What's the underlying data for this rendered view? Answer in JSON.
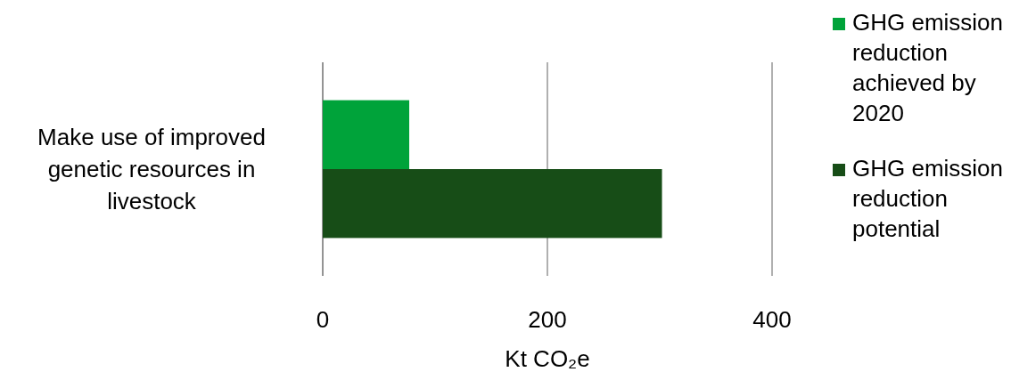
{
  "chart_data": {
    "type": "bar",
    "orientation": "horizontal",
    "categories": [
      "Make use of improved genetic resources in livestock"
    ],
    "series": [
      {
        "name": "GHG emission reduction achieved by 2020",
        "color": "#00a33a",
        "values": [
          77
        ]
      },
      {
        "name": "GHG emission reduction potential",
        "color": "#174d17",
        "values": [
          302
        ]
      }
    ],
    "xlim": [
      0,
      400
    ],
    "xticks": [
      0,
      200,
      400
    ],
    "xlabel": "Kt CO₂e",
    "grid": "x",
    "legend": "right"
  }
}
